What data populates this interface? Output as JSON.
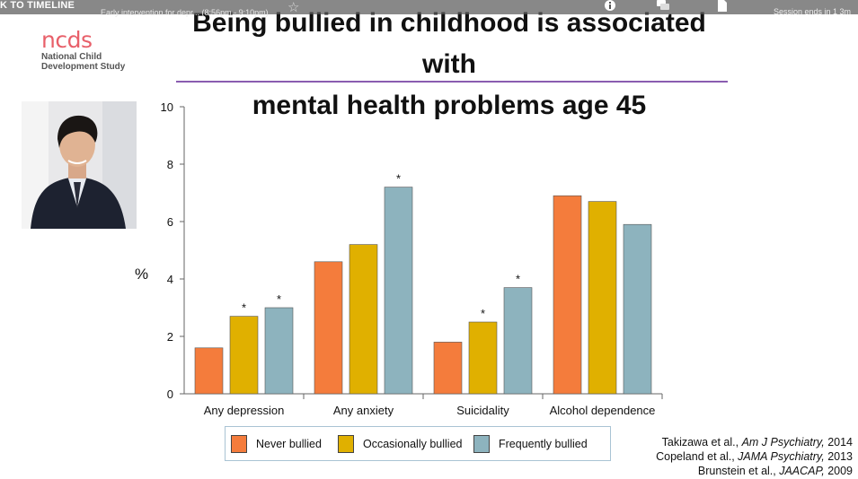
{
  "player": {
    "back_label": "K TO TIMELINE",
    "session_title": "Early intervention for depr... (8:56pm - 9:10pm)",
    "session_ends": "Session ends in 1 3m",
    "icons": [
      "info-icon",
      "chat-icon",
      "document-icon"
    ]
  },
  "logo": {
    "mark": "ncds",
    "line1": "National Child",
    "line2": "Development Study"
  },
  "slide": {
    "title_line1": "Being bullied in childhood is associated with",
    "title_line2": "mental health problems age 45",
    "accent_color": "#8a5cb0"
  },
  "chart_data": {
    "type": "bar",
    "ylabel": "%",
    "ylim": [
      0,
      10
    ],
    "yticks": [
      "0",
      "2",
      "4",
      "6",
      "8",
      "10"
    ],
    "categories": [
      "Any depression",
      "Any anxiety",
      "Suicidality",
      "Alcohol dependence"
    ],
    "series": [
      {
        "name": "Never bullied",
        "color": "#f47c3c",
        "values": [
          1.6,
          4.6,
          1.8,
          6.9
        ],
        "significant": [
          false,
          false,
          false,
          false
        ]
      },
      {
        "name": "Occasionally bullied",
        "color": "#e0b000",
        "values": [
          2.7,
          5.2,
          2.5,
          6.7
        ],
        "significant": [
          true,
          false,
          true,
          false
        ]
      },
      {
        "name": "Frequently bullied",
        "color": "#8db3be",
        "values": [
          3.0,
          7.2,
          3.7,
          5.9
        ],
        "significant": [
          true,
          true,
          true,
          false
        ]
      }
    ],
    "significance_marker": "*",
    "legend_position": "bottom"
  },
  "references": [
    {
      "authors": "Takizawa et al., ",
      "journal": "Am J Psychiatry,",
      "year": " 2014"
    },
    {
      "authors": "Copeland et al., ",
      "journal": "JAMA Psychiatry,",
      "year": " 2013"
    },
    {
      "authors": "Brunstein et al., ",
      "journal": "JAACAP,",
      "year": " 2009"
    }
  ]
}
